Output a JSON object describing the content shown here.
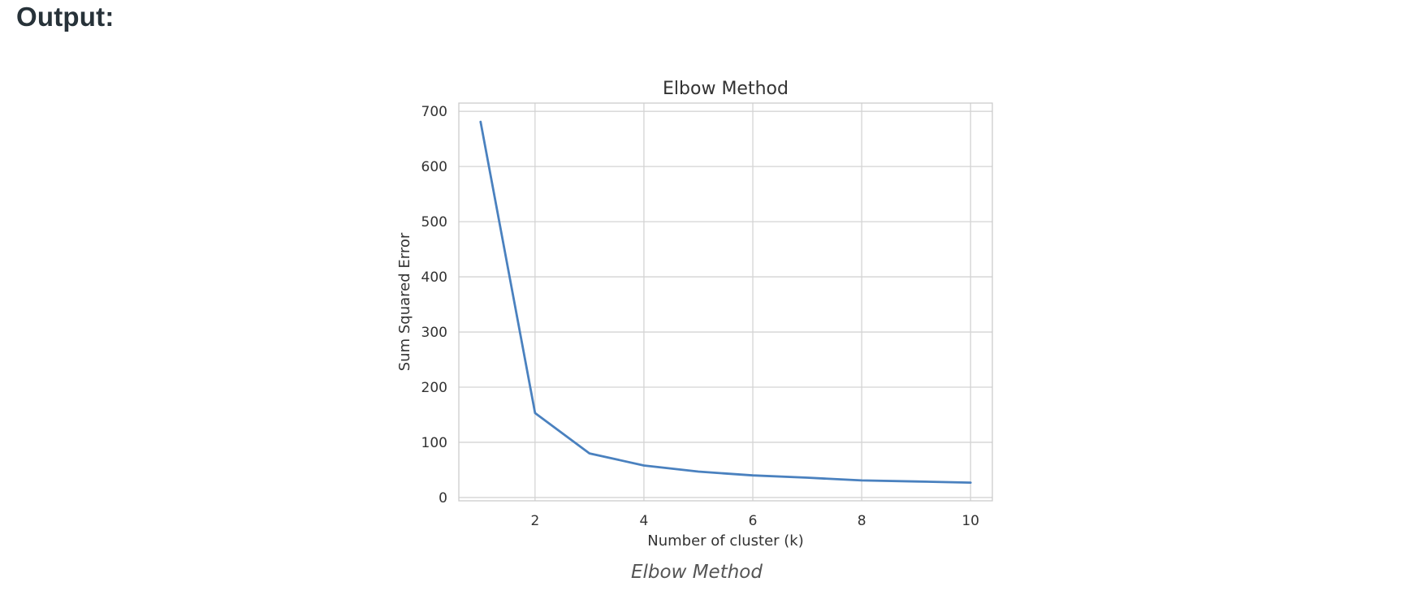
{
  "page": {
    "heading": "Output:",
    "caption": "Elbow Method"
  },
  "chart_data": {
    "type": "line",
    "title": "Elbow Method",
    "xlabel": "Number of cluster (k)",
    "ylabel": "Sum Squared Error",
    "xlim": [
      0.6,
      10.4
    ],
    "ylim": [
      -6,
      715
    ],
    "xticks": [
      2,
      4,
      6,
      8,
      10
    ],
    "yticks": [
      0,
      100,
      200,
      300,
      400,
      500,
      600,
      700
    ],
    "grid": true,
    "legend": "none",
    "series": [
      {
        "x": [
          1,
          2,
          3,
          4,
          5,
          6,
          7,
          8,
          9,
          10
        ],
        "values": [
          681,
          153,
          80,
          58,
          47,
          40,
          36,
          31,
          29,
          27
        ],
        "color": "#4a81bf"
      }
    ]
  }
}
